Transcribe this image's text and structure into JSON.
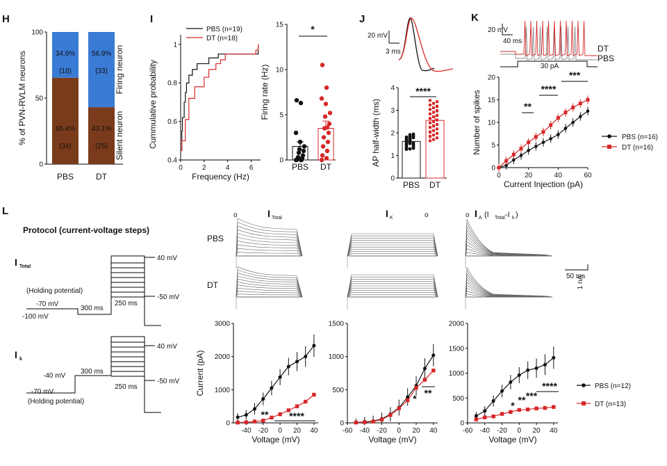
{
  "colors": {
    "pbs": "#111111",
    "dt": "#d62728",
    "firing": "#3a7bd5",
    "silent": "#7a3b1c"
  },
  "panels": {
    "H": "H",
    "I": "I",
    "J": "J",
    "K": "K",
    "L": "L"
  },
  "chart_data": [
    {
      "id": "H",
      "type": "bar",
      "stacked": true,
      "categories": [
        "PBS",
        "DT"
      ],
      "series": [
        {
          "name": "Silent neuron",
          "values": [
            65.4,
            43.1
          ],
          "counts": [
            "(34)",
            "(25)"
          ],
          "labels": [
            "65.4%",
            "43.1%"
          ]
        },
        {
          "name": "Firing neuron",
          "values": [
            34.6,
            56.9
          ],
          "counts": [
            "(18)",
            "(33)"
          ],
          "labels": [
            "34.6%",
            "56.9%"
          ]
        }
      ],
      "ylabel": "% of  PVN-RVLM neurons",
      "yticks": [
        "0",
        "50",
        "100"
      ],
      "ylim": [
        0,
        100
      ]
    },
    {
      "id": "I1",
      "type": "line",
      "title": "",
      "xlabel": "Frequency (Hz)",
      "ylabel": "Cummulative probability",
      "xticks": [
        "0",
        "2",
        "4",
        "6"
      ],
      "yticks": [
        "0.4",
        "0.6",
        "0.8",
        "1"
      ],
      "xlim": [
        0,
        6.8
      ],
      "ylim": [
        0.4,
        1.05
      ],
      "legend": [
        "PBS (n=19)",
        "DT (n=18)"
      ],
      "series": [
        {
          "name": "PBS (n=19)",
          "x": [
            0.0,
            0.1,
            0.15,
            0.3,
            0.4,
            0.5,
            0.7,
            1.0,
            1.4,
            2.0,
            2.4,
            3.2,
            3.6,
            6.6
          ],
          "y": [
            0.45,
            0.55,
            0.62,
            0.7,
            0.75,
            0.8,
            0.84,
            0.87,
            0.9,
            0.9,
            0.93,
            0.95,
            0.95,
            1.0
          ]
        },
        {
          "name": "DT (n=18)",
          "x": [
            0.0,
            0.1,
            0.4,
            0.7,
            1.2,
            1.6,
            2.0,
            2.4,
            3.0,
            3.4,
            3.8,
            6.4,
            6.6
          ],
          "y": [
            0.45,
            0.5,
            0.61,
            0.72,
            0.78,
            0.78,
            0.83,
            0.87,
            0.9,
            0.92,
            0.95,
            0.97,
            1.0
          ]
        }
      ]
    },
    {
      "id": "I2",
      "type": "bar",
      "categories": [
        "PBS",
        "DT"
      ],
      "values": [
        1.5,
        3.5
      ],
      "sem": [
        0.5,
        0.8
      ],
      "ylabel": "Firing rate (Hz)",
      "yticks": [
        "0",
        "5",
        "10",
        "15"
      ],
      "ylim": [
        0,
        15
      ],
      "sig": "*",
      "points": [
        [
          0,
          0,
          0,
          0,
          0.1,
          0.2,
          0.3,
          0.5,
          0.8,
          1.0,
          1.2,
          1.5,
          2.0,
          3.0,
          6.3,
          6.6
        ],
        [
          0,
          0.2,
          0.5,
          1.0,
          1.5,
          2.0,
          2.5,
          3.0,
          3.5,
          4.0,
          4.8,
          5.2,
          6.2,
          6.8,
          8.0,
          10.5,
          3.6
        ]
      ]
    },
    {
      "id": "J",
      "type": "bar",
      "categories": [
        "PBS",
        "DT"
      ],
      "values": [
        1.62,
        2.55
      ],
      "sem": [
        0.1,
        0.2
      ],
      "ylabel": "AP half-width (ms)",
      "yticks": [
        "0",
        "1",
        "2",
        "3",
        "4"
      ],
      "ylim": [
        0,
        4
      ],
      "sig": "****",
      "scalebar": [
        "20 mV",
        "3 ms"
      ]
    },
    {
      "id": "K",
      "type": "line",
      "xlabel": "Current Injection (pA)",
      "ylabel": "Number of spikes",
      "xticks": [
        "0",
        "20",
        "40",
        "60"
      ],
      "yticks": [
        "0",
        "5",
        "10",
        "15",
        "20"
      ],
      "xlim": [
        0,
        60
      ],
      "ylim": [
        0,
        20
      ],
      "legend": [
        "PBS (n=16)",
        "DT (n=16)"
      ],
      "sig": [
        "**",
        "****",
        "***"
      ],
      "trace_labels": [
        "DT",
        "PBS"
      ],
      "step_label": "30 pA",
      "scalebar": [
        "20 mV",
        "40 ms"
      ],
      "series": [
        {
          "name": "PBS (n=16)",
          "x": [
            0,
            5,
            10,
            15,
            20,
            25,
            30,
            35,
            40,
            45,
            50,
            55,
            60
          ],
          "y": [
            0,
            0.5,
            1.7,
            2.7,
            3.8,
            4.7,
            5.6,
            6.4,
            7.3,
            8.7,
            10,
            11.3,
            12.5
          ]
        },
        {
          "name": "DT (n=16)",
          "x": [
            0,
            5,
            10,
            15,
            20,
            25,
            30,
            35,
            40,
            45,
            50,
            55,
            60
          ],
          "y": [
            0,
            1.5,
            2.9,
            4.2,
            5.6,
            6.8,
            7.9,
            9.4,
            11,
            12.2,
            13.3,
            14.2,
            15
          ]
        }
      ]
    },
    {
      "id": "L-ITotal",
      "type": "line",
      "title": "I",
      "title_sub": "Total",
      "xlabel": "Voltage (mV)",
      "ylabel": "Current (pA)",
      "xticks": [
        "-40",
        "-20",
        "0",
        "20",
        "40"
      ],
      "yticks": [
        "0",
        "1000",
        "2000",
        "3000"
      ],
      "xlim": [
        -55,
        45
      ],
      "ylim": [
        0,
        3000
      ],
      "sig": [
        "**",
        "****"
      ],
      "series": [
        {
          "name": "PBS (n=12)",
          "x": [
            -50,
            -40,
            -30,
            -20,
            -10,
            0,
            10,
            20,
            30,
            40
          ],
          "y": [
            170,
            240,
            420,
            720,
            1050,
            1380,
            1700,
            1850,
            2000,
            2330
          ]
        },
        {
          "name": "DT (n=13)",
          "x": [
            -50,
            -40,
            -30,
            -20,
            -10,
            0,
            10,
            20,
            30,
            40
          ],
          "y": [
            10,
            20,
            40,
            70,
            160,
            260,
            380,
            500,
            640,
            850
          ]
        }
      ]
    },
    {
      "id": "L-IK",
      "type": "line",
      "title": "I",
      "title_sub": "K",
      "xlabel": "Voltage (mV)",
      "ylabel": "",
      "xticks": [
        "-60",
        "-40",
        "-20",
        "0",
        "20",
        "40"
      ],
      "yticks": [
        "0",
        "500",
        "1000",
        "1500"
      ],
      "xlim": [
        -60,
        45
      ],
      "ylim": [
        0,
        1500
      ],
      "sig": [
        "*",
        "**"
      ],
      "series": [
        {
          "name": "PBS (n=12)",
          "x": [
            -50,
            -40,
            -30,
            -20,
            -10,
            0,
            10,
            20,
            30,
            40
          ],
          "y": [
            5,
            15,
            25,
            60,
            130,
            230,
            390,
            560,
            820,
            1020
          ]
        },
        {
          "name": "DT (n=13)",
          "x": [
            -50,
            -40,
            -30,
            -20,
            -10,
            0,
            10,
            20,
            30,
            40
          ],
          "y": [
            5,
            10,
            20,
            50,
            120,
            220,
            340,
            530,
            650,
            790
          ]
        }
      ]
    },
    {
      "id": "L-IA",
      "type": "line",
      "title": "I",
      "title_sub": "A",
      "title_suffix": " (I",
      "title_sub2": "Total",
      "title_suffix2": "-I",
      "title_sub3": "k",
      "title_end": ")",
      "xlabel": "Voltage (mV)",
      "ylabel": "",
      "xticks": [
        "-60",
        "-40",
        "-20",
        "0",
        "20",
        "40"
      ],
      "yticks": [
        "0",
        "500",
        "1000",
        "1500",
        "2000"
      ],
      "xlim": [
        -60,
        45
      ],
      "ylim": [
        0,
        2000
      ],
      "sig": [
        "*",
        "**",
        "***",
        "****"
      ],
      "legend": [
        "PBS (n=12)",
        "DT (n=13)"
      ],
      "series": [
        {
          "name": "PBS (n=12)",
          "x": [
            -50,
            -40,
            -30,
            -20,
            -10,
            0,
            10,
            20,
            30,
            40
          ],
          "y": [
            140,
            240,
            440,
            640,
            820,
            960,
            1060,
            1100,
            1170,
            1310
          ]
        },
        {
          "name": "DT (n=13)",
          "x": [
            -50,
            -40,
            -30,
            -20,
            -10,
            0,
            10,
            20,
            30,
            40
          ],
          "y": [
            70,
            110,
            130,
            180,
            220,
            260,
            270,
            290,
            300,
            320
          ]
        }
      ]
    }
  ],
  "text": {
    "firing": "Firing neuron",
    "silent": "Silent neuron",
    "protocol": "Protocol (current-voltage steps)",
    "itotal_I": "I",
    "itotal_sub": "Total",
    "ik_I": "I",
    "ik_sub": "k",
    "holding": "(Holding potential)",
    "holding2": "(Holding potential)",
    "v70": "-70 mV",
    "v100": "-100 mV",
    "v40top": "40 mV",
    "v50": "-50 mV",
    "ms300": "300 ms",
    "ms250": "250 ms",
    "v40neg": "-40 mV",
    "v70b": "-70 mV",
    "v40top2": "40 mV",
    "v50b": "-50 mV",
    "ms300b": "300 ms",
    "ms250b": "250 ms",
    "pbs_row": "PBS",
    "dt_row": "DT",
    "scale_nA": "1 nA",
    "scale_ms": "50 ms",
    "circle": "o"
  }
}
